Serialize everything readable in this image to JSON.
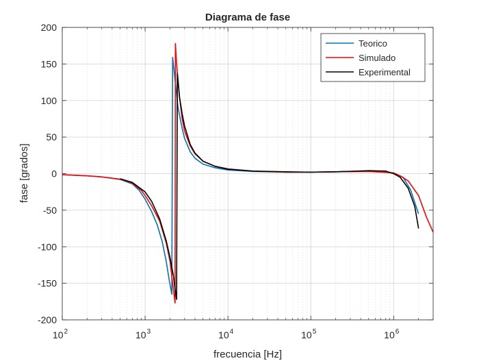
{
  "chart_data": {
    "type": "line",
    "title": "Diagrama de fase",
    "xlabel": "frecuencia [Hz]",
    "ylabel": "fase [grados]",
    "x_scale": "log",
    "xlim": [
      100,
      3000000
    ],
    "ylim": [
      -200,
      200
    ],
    "grid": true,
    "minor_grid": true,
    "legend_position": "top-right",
    "x_ticks": [
      {
        "value": 100,
        "base": "10",
        "exp": "2"
      },
      {
        "value": 1000,
        "base": "10",
        "exp": "3"
      },
      {
        "value": 10000,
        "base": "10",
        "exp": "4"
      },
      {
        "value": 100000,
        "base": "10",
        "exp": "5"
      },
      {
        "value": 1000000,
        "base": "10",
        "exp": "6"
      }
    ],
    "y_ticks": [
      {
        "value": 200,
        "label": "200"
      },
      {
        "value": 150,
        "label": "150"
      },
      {
        "value": 100,
        "label": "100"
      },
      {
        "value": 50,
        "label": "50"
      },
      {
        "value": 0,
        "label": "0"
      },
      {
        "value": -50,
        "label": "-50"
      },
      {
        "value": -100,
        "label": "-100"
      },
      {
        "value": -150,
        "label": "-150"
      },
      {
        "value": -200,
        "label": "-200"
      }
    ],
    "series": [
      {
        "name": "Teorico",
        "color": "#0072BD",
        "points": [
          [
            100,
            -1.5
          ],
          [
            200,
            -3
          ],
          [
            300,
            -4.5
          ],
          [
            500,
            -8
          ],
          [
            700,
            -14
          ],
          [
            850,
            -23
          ],
          [
            1000,
            -35
          ],
          [
            1200,
            -52
          ],
          [
            1400,
            -70
          ],
          [
            1600,
            -92
          ],
          [
            1800,
            -120
          ],
          [
            1950,
            -145
          ],
          [
            2100,
            -165
          ],
          [
            2150,
            159
          ],
          [
            2300,
            128
          ],
          [
            2500,
            90
          ],
          [
            2800,
            62
          ],
          [
            3000,
            48
          ],
          [
            3500,
            30
          ],
          [
            4000,
            21
          ],
          [
            5000,
            13
          ],
          [
            7000,
            8
          ],
          [
            10000,
            5
          ],
          [
            20000,
            3
          ],
          [
            50000,
            2
          ],
          [
            100000,
            2
          ],
          [
            200000,
            2.5
          ],
          [
            500000,
            3.5
          ],
          [
            800000,
            3
          ],
          [
            1000000,
            0
          ],
          [
            1300000,
            -5
          ],
          [
            1600000,
            -22
          ],
          [
            2000000,
            -55
          ]
        ]
      },
      {
        "name": "Simulado",
        "color": "#FF0000",
        "points": [
          [
            100,
            -1.5
          ],
          [
            200,
            -3
          ],
          [
            300,
            -4.5
          ],
          [
            500,
            -7.5
          ],
          [
            700,
            -13
          ],
          [
            900,
            -23
          ],
          [
            1000,
            -30
          ],
          [
            1200,
            -44
          ],
          [
            1500,
            -65
          ],
          [
            1800,
            -95
          ],
          [
            2000,
            -120
          ],
          [
            2150,
            -150
          ],
          [
            2300,
            -177
          ],
          [
            2320,
            178
          ],
          [
            2400,
            150
          ],
          [
            2600,
            105
          ],
          [
            2800,
            75
          ],
          [
            3000,
            58
          ],
          [
            3500,
            38
          ],
          [
            4000,
            27
          ],
          [
            5000,
            17
          ],
          [
            7000,
            10
          ],
          [
            10000,
            6.5
          ],
          [
            20000,
            3.5
          ],
          [
            50000,
            2
          ],
          [
            100000,
            2
          ],
          [
            200000,
            2.5
          ],
          [
            500000,
            3
          ],
          [
            1000000,
            1
          ],
          [
            1200000,
            -3
          ],
          [
            1500000,
            -10
          ],
          [
            2000000,
            -30
          ],
          [
            2500000,
            -60
          ],
          [
            3000000,
            -80
          ]
        ]
      },
      {
        "name": "Experimental",
        "color": "#000000",
        "points": [
          [
            500,
            -7
          ],
          [
            700,
            -12
          ],
          [
            1000,
            -25
          ],
          [
            1200,
            -38
          ],
          [
            1500,
            -62
          ],
          [
            1800,
            -92
          ],
          [
            2000,
            -115
          ],
          [
            2200,
            -140
          ],
          [
            2300,
            -158
          ],
          [
            2400,
            -172
          ],
          [
            2450,
            137
          ],
          [
            2600,
            105
          ],
          [
            2800,
            82
          ],
          [
            3000,
            65
          ],
          [
            3500,
            40
          ],
          [
            4000,
            28
          ],
          [
            5000,
            17
          ],
          [
            7000,
            10
          ],
          [
            10000,
            6
          ],
          [
            20000,
            3.5
          ],
          [
            50000,
            2.5
          ],
          [
            100000,
            2
          ],
          [
            200000,
            2.5
          ],
          [
            500000,
            4
          ],
          [
            800000,
            3.5
          ],
          [
            1000000,
            0
          ],
          [
            1200000,
            -5
          ],
          [
            1500000,
            -20
          ],
          [
            1800000,
            -45
          ],
          [
            2000000,
            -75
          ]
        ]
      }
    ]
  }
}
